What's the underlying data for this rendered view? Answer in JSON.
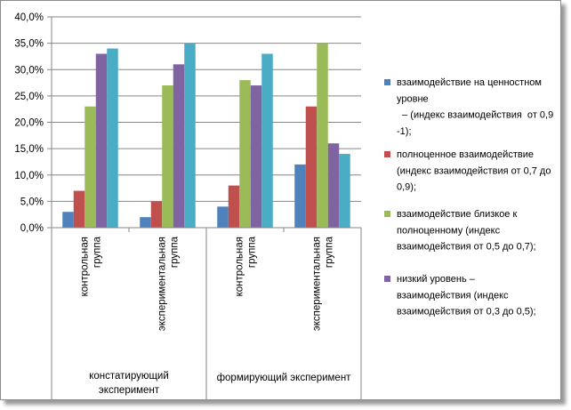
{
  "chart_data": {
    "type": "bar",
    "groups": [
      "констатирующий эксперимент",
      "формирующий эксперимент"
    ],
    "group_lines": [
      [
        "констатирующий",
        "эксперимент"
      ],
      [
        "формирующий эксперимент"
      ]
    ],
    "categories": [
      "контрольная группа",
      "экспериментальная группа",
      "контрольная группа",
      "экспериментальная группа"
    ],
    "category_lines": [
      [
        "контрольная",
        "группа"
      ],
      [
        "экспериментальная",
        "группа"
      ],
      [
        "контрольная",
        "группа"
      ],
      [
        "экспериментальная",
        "группа"
      ]
    ],
    "ylim": [
      0,
      40
    ],
    "yticks": [
      "0,0%",
      "5,0%",
      "10,0%",
      "15,0%",
      "20,0%",
      "25,0%",
      "30,0%",
      "35,0%",
      "40,0%"
    ],
    "grid": true,
    "legend_position": "right",
    "series": [
      {
        "name": "взаимодействие на ценностном уровне – (индекс взаимодействия от 0,9 -1);",
        "legend_lines": [
          "взаимодействие на ценностном",
          "уровне",
          "  – (индекс взаимодействия  от 0,9",
          "-1);"
        ],
        "color": "#4f81bd",
        "values": [
          3,
          2,
          4,
          12
        ]
      },
      {
        "name": "полноценное взаимодействие (индекс взаимодействия от 0,7 до 0,9);",
        "legend_lines": [
          "полноценное взаимодействие",
          "(индекс взаимодействия от 0,7 до",
          "0,9);"
        ],
        "color": "#c0504d",
        "values": [
          7,
          5,
          8,
          23
        ]
      },
      {
        "name": "взаимодействие близкое к полноценному (индекс взаимодействия от 0,5 до 0,7);",
        "legend_lines": [
          "взаимодействие близкое к",
          "полноценному (индекс",
          "взаимодействия от 0,5 до 0,7);"
        ],
        "color": "#9bbb59",
        "values": [
          23,
          27,
          28,
          35
        ]
      },
      {
        "name": "низкий уровень – взаимодействия (индекс взаимодействия от 0,3 до 0,5);",
        "legend_lines": [
          "низкий уровень –",
          "взаимодействия (индекс",
          "взаимодействия от 0,3 до 0,5);"
        ],
        "color": "#8064a2",
        "values": [
          33,
          31,
          27,
          16
        ]
      },
      {
        "name": "",
        "legend_lines": [],
        "color": "#4bacc6",
        "values": [
          34,
          35,
          33,
          14
        ]
      }
    ]
  }
}
